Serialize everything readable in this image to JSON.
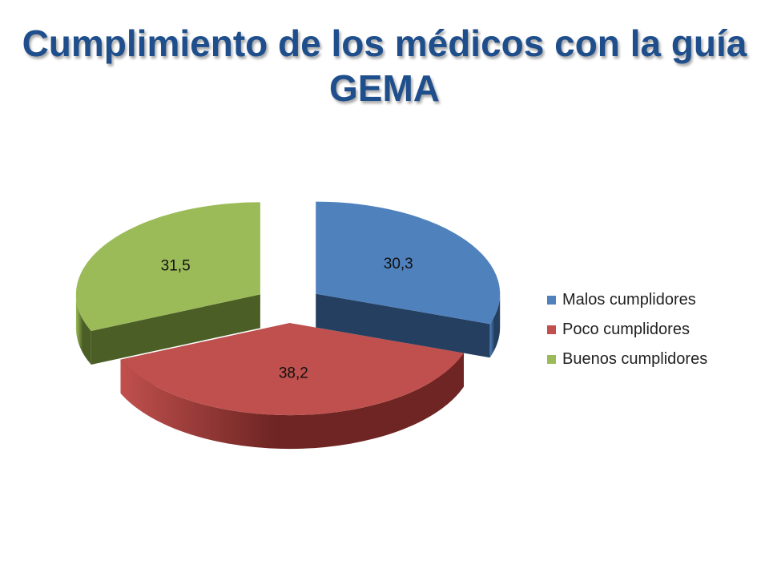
{
  "title": "Cumplimiento de los médicos con la guía GEMA",
  "chart_data": {
    "type": "pie",
    "style": "3d-exploded",
    "legend_position": "right",
    "slices": [
      {
        "label": "Malos cumplidores",
        "value": 30.3,
        "value_label": "30,3",
        "color": "#4f81bd",
        "side_color": "#243f60"
      },
      {
        "label": "Poco cumplidores",
        "value": 38.2,
        "value_label": "38,2",
        "color": "#c0504d",
        "side_color": "#6e2523"
      },
      {
        "label": "Buenos cumplidores",
        "value": 31.5,
        "value_label": "31,5",
        "color": "#9bbb59",
        "side_color": "#4a5e25"
      }
    ]
  }
}
